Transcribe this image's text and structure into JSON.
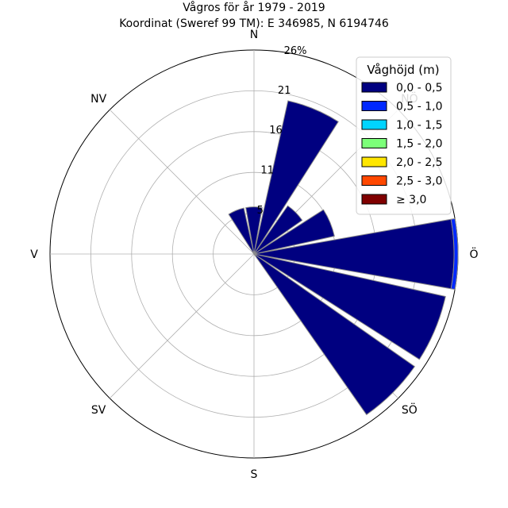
{
  "chart_data": {
    "type": "wind-rose",
    "title": "Vågros för år 1979 - 2019",
    "subtitle": "Koordinat (Sweref 99 TM): E 346985, N 6194746",
    "direction_labels": [
      "N",
      "NV",
      "V",
      "SV",
      "S",
      "SÖ",
      "Ö",
      "NÖ"
    ],
    "direction_angles_deg": [
      0,
      315,
      270,
      225,
      180,
      135,
      90,
      45
    ],
    "radial_ticks": [
      "5",
      "11",
      "16",
      "21",
      "26%"
    ],
    "radial_tick_values": [
      5.2,
      10.4,
      15.6,
      20.8,
      26.0
    ],
    "r_max": 26.0,
    "legend": {
      "title": "Våghöjd (m)",
      "placement": "top-right",
      "entries": [
        "0,0 - 0,5",
        "0,5 - 1,0",
        "1,0 - 1,5",
        "1,5 - 2,0",
        "2,0 - 2,5",
        "2,5 - 3,0",
        "≥ 3,0"
      ],
      "colors": [
        "#000080",
        "#0028ff",
        "#00d4ff",
        "#7cff79",
        "#ffe600",
        "#ff4800",
        "#800000"
      ]
    },
    "sectors": [
      {
        "direction_deg": 0,
        "values": [
          6.0,
          0,
          0,
          0,
          0,
          0,
          0
        ]
      },
      {
        "direction_deg": 22.5,
        "values": [
          20.0,
          0,
          0,
          0,
          0,
          0,
          0
        ]
      },
      {
        "direction_deg": 45,
        "values": [
          7.5,
          0,
          0,
          0,
          0,
          0,
          0
        ]
      },
      {
        "direction_deg": 67.5,
        "values": [
          10.5,
          0,
          0,
          0,
          0,
          0,
          0
        ]
      },
      {
        "direction_deg": 90,
        "values": [
          25.5,
          0.5,
          0,
          0,
          0,
          0,
          0
        ]
      },
      {
        "direction_deg": 112.5,
        "values": [
          25.0,
          0,
          0,
          0,
          0,
          0,
          0
        ]
      },
      {
        "direction_deg": 135,
        "values": [
          25.0,
          0,
          0,
          0,
          0,
          0,
          0
        ]
      },
      {
        "direction_deg": 157.5,
        "values": [
          0,
          0,
          0,
          0,
          0,
          0,
          0
        ]
      },
      {
        "direction_deg": 180,
        "values": [
          0,
          0,
          0,
          0,
          0,
          0,
          0
        ]
      },
      {
        "direction_deg": 202.5,
        "values": [
          0,
          0,
          0,
          0,
          0,
          0,
          0
        ]
      },
      {
        "direction_deg": 225,
        "values": [
          0,
          0,
          0,
          0,
          0,
          0,
          0
        ]
      },
      {
        "direction_deg": 247.5,
        "values": [
          0,
          0,
          0,
          0,
          0,
          0,
          0
        ]
      },
      {
        "direction_deg": 270,
        "values": [
          0,
          0,
          0,
          0,
          0,
          0,
          0
        ]
      },
      {
        "direction_deg": 292.5,
        "values": [
          0,
          0,
          0,
          0,
          0,
          0,
          0
        ]
      },
      {
        "direction_deg": 315,
        "values": [
          0,
          0,
          0,
          0,
          0,
          0,
          0
        ]
      },
      {
        "direction_deg": 337.5,
        "values": [
          6.0,
          0,
          0,
          0,
          0,
          0,
          0
        ]
      }
    ],
    "sector_width_deg": 20,
    "grid": true
  }
}
